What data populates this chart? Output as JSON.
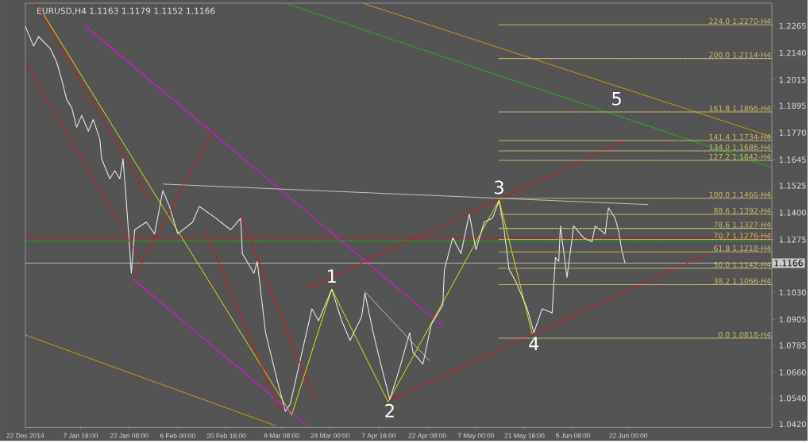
{
  "chart_data": {
    "type": "line",
    "title": "EURUSD,H4 1.1163 1.1179 1.1152 1.1166",
    "xlim": [
      "2014-12-22T00:00",
      "2015-08-04T08:00"
    ],
    "xticks": [
      {
        "value": "2014-12-22T00:00",
        "label": "22 Dec 2014"
      },
      {
        "value": "2015-01-07T16:00",
        "label": "7 Jan 16:00"
      },
      {
        "value": "2015-01-22T08:00",
        "label": "22 Jan 08:00"
      },
      {
        "value": "2015-02-06T00:00",
        "label": "6 Feb 00:00"
      },
      {
        "value": "2015-02-20T16:00",
        "label": "20 Feb 16:00"
      },
      {
        "value": "2015-03-09T08:00",
        "label": "9 Mar 08:00"
      },
      {
        "value": "2015-03-24T00:00",
        "label": "24 Mar 00:00"
      },
      {
        "value": "2015-04-07T16:00",
        "label": "7 Apr 16:00"
      },
      {
        "value": "2015-04-22T08:00",
        "label": "22 Apr 08:00"
      },
      {
        "value": "2015-05-07T00:00",
        "label": "7 May 00:00"
      },
      {
        "value": "2015-05-21T16:00",
        "label": "21 May 16:00"
      },
      {
        "value": "2015-06-05T08:00",
        "label": "5 Jun 08:00"
      },
      {
        "value": "2015-06-22T00:00",
        "label": "22 Jun 00:00"
      }
    ],
    "ylim": [
      1.0405,
      1.237
    ],
    "yticks": [
      1.2265,
      {
        "value": 1.214,
        "label": "1.2140"
      },
      1.2015,
      1.1895,
      {
        "value": 1.177,
        "label": "1.1770"
      },
      1.1645,
      1.1525,
      {
        "value": 1.14,
        "label": "1.1400"
      },
      1.1275,
      {
        "value": 1.103,
        "label": "1.1030"
      },
      1.0905,
      1.0785,
      {
        "value": 1.066,
        "label": "1.0660"
      },
      {
        "value": 1.054,
        "label": "1.0540"
      },
      {
        "value": 1.042,
        "label": "1.0420"
      }
    ],
    "series": [
      {
        "color": "#e8e8e8",
        "line_style": "solid",
        "x": [
          "2014-12-22",
          "2014-12-24T12:00",
          "2014-12-26",
          "2014-12-29T12:00",
          "2014-12-31T12:00",
          "2015-01-02",
          "2015-01-03T12:00",
          "2015-01-05",
          "2015-01-06T12:00",
          "2015-01-08",
          "2015-01-10",
          "2015-01-11T12:00",
          "2015-01-13T12:00",
          "2015-01-14",
          "2015-01-16T12:00",
          "2015-01-18",
          "2015-01-19T12:00",
          "2015-01-20T12:00",
          "2015-01-21T12:00",
          "2015-01-23",
          "2015-01-24",
          "2015-01-27T12:00",
          "2015-01-30",
          "2015-02-01T12:00",
          "2015-02-03T12:00",
          "2015-02-06",
          "2015-02-10T12:00",
          "2015-02-12T12:00",
          "2015-02-17T12:00",
          "2015-02-22",
          "2015-02-25",
          "2015-02-25T12:00",
          "2015-03-01",
          "2015-03-02",
          "2015-03-04T12:00",
          "2015-03-08",
          "2015-03-10T12:00",
          "2015-03-12",
          "2015-03-15T12:00",
          "2015-03-18T12:00",
          "2015-03-20T12:00",
          "2015-03-24T12:00",
          "2015-03-27T12:00",
          "2015-03-30",
          "2015-04-02T12:00",
          "2015-04-03T12:00",
          "2015-04-06",
          "2015-04-08",
          "2015-04-11",
          "2015-04-14",
          "2015-04-17",
          "2015-04-18",
          "2015-04-21",
          "2015-04-23T12:00",
          "2015-04-27",
          "2015-04-27T12:00",
          "2015-04-30",
          "2015-05-02T12:00",
          "2015-05-05",
          "2015-05-07",
          "2015-05-09T12:00",
          "2015-05-12",
          "2015-05-14",
          "2015-05-15T12:00",
          "2015-05-17",
          "2015-05-19",
          "2015-05-22T12:00",
          "2015-05-24T12:00",
          "2015-05-27",
          "2015-05-30",
          "2015-05-31",
          "2015-06-01",
          "2015-06-01T12:00",
          "2015-06-03T12:00",
          "2015-06-05T12:00",
          "2015-06-08T12:00",
          "2015-06-11",
          "2015-06-12",
          "2015-06-15",
          "2015-06-16",
          "2015-06-18",
          "2015-06-19",
          "2015-06-20",
          "2015-06-21"
        ],
        "values": [
          1.2263,
          1.2171,
          1.2215,
          1.216,
          1.2095,
          1.2014,
          1.1923,
          1.1886,
          1.1795,
          1.185,
          1.1777,
          1.1831,
          1.174,
          1.1649,
          1.1557,
          1.1594,
          1.1557,
          1.1649,
          1.1448,
          1.1119,
          1.132,
          1.1356,
          1.1301,
          1.1502,
          1.1429,
          1.1301,
          1.1356,
          1.1429,
          1.1374,
          1.132,
          1.1374,
          1.121,
          1.1119,
          1.1173,
          1.0844,
          1.0625,
          1.0479,
          1.0515,
          1.0753,
          1.0954,
          1.0899,
          1.1045,
          1.0899,
          1.0808,
          1.0917,
          1.1027,
          1.0844,
          1.0716,
          1.0534,
          1.068,
          1.0844,
          1.0753,
          1.0698,
          1.0881,
          1.0972,
          1.1137,
          1.1283,
          1.121,
          1.1393,
          1.1228,
          1.1356,
          1.1374,
          1.1455,
          1.132,
          1.1137,
          1.1082,
          1.0954,
          1.0844,
          1.0954,
          1.0936,
          1.1192,
          1.1173,
          1.1338,
          1.11,
          1.1338,
          1.1283,
          1.1265,
          1.1338,
          1.1301,
          1.1422,
          1.1374,
          1.132,
          1.1228,
          1.1166
        ]
      },
      {
        "color": "#ffff00",
        "line_style": "solid",
        "x": [
          "2014-12-27T12:00",
          "2015-03-12T12:00"
        ],
        "values": [
          1.2318,
          1.046
        ]
      },
      {
        "color": "#ff00ff",
        "line_style": "dashed",
        "x": [
          "2015-01-09",
          "2015-04-27"
        ],
        "values": [
          1.2266,
          1.0874
        ]
      },
      {
        "color": "#ff00ff",
        "line_style": "dashed",
        "x": [
          "2015-01-23T12:00",
          "2015-03-17"
        ],
        "values": [
          1.1093,
          1.0413
        ]
      },
      {
        "color": "#ff0000",
        "line_style": "solid",
        "x": [
          "2015-03-16T12:00",
          "2015-06-21"
        ],
        "values": [
          1.1045,
          1.1733
        ]
      },
      {
        "color": "#ff0000",
        "line_style": "solid",
        "x": [
          "2015-04-10T12:00",
          "2015-07-16"
        ],
        "values": [
          1.0526,
          1.121
        ]
      },
      {
        "color": "#d8d8d8",
        "line_style": "solid",
        "x": [
          "2015-02-01T12:00",
          "2015-06-28"
        ],
        "values": [
          1.1532,
          1.1437
        ]
      },
      {
        "color": "#00d000",
        "line_style": "solid",
        "x": [
          "2015-03-10T12:00",
          "2015-08-04T08:00"
        ],
        "values": [
          1.2369,
          1.1608
        ]
      },
      {
        "color": "#f0a000",
        "line_style": "solid",
        "x": [
          "2015-04-03",
          "2015-08-04T08:00"
        ],
        "values": [
          1.2369,
          1.1751
        ]
      },
      {
        "color": "#f0a000",
        "line_style": "solid",
        "x": [
          "2014-12-22",
          "2015-03-07T12:00"
        ],
        "values": [
          1.0833,
          1.0413
        ]
      },
      {
        "color": "#ff0000",
        "line_style": "solid",
        "x": [
          "2014-12-22",
          "2015-01-26"
        ],
        "values": [
          1.2098,
          1.1173
        ]
      },
      {
        "color": "#ff0000",
        "line_style": "solid",
        "x": [
          "2014-12-25",
          "2015-01-28"
        ],
        "values": [
          1.2369,
          1.1473
        ]
      },
      {
        "color": "#ff0000",
        "line_style": "solid",
        "x": [
          "2015-02-25",
          "2015-03-19T12:00"
        ],
        "values": [
          1.1382,
          1.0534
        ]
      },
      {
        "color": "#ff0000",
        "line_style": "solid",
        "x": [
          "2015-02-14T12:00",
          "2015-03-09"
        ],
        "values": [
          1.1312,
          1.0479
        ]
      },
      {
        "color": "#ff0000",
        "line_style": "solid",
        "x": [
          "2015-01-23T12:00",
          "2015-02-17"
        ],
        "values": [
          1.1093,
          1.1784
        ]
      },
      {
        "color": "#d8d8d8",
        "line_style": "solid",
        "x": [
          "2015-04-03T12:00",
          "2015-04-23"
        ],
        "values": [
          1.1034,
          1.0713
        ]
      },
      {
        "color": "#ffff00",
        "line_style": "solid",
        "x": [
          "2015-03-12T12:00",
          "2015-03-24T12:00",
          "2015-04-10T12:00",
          "2015-05-14",
          "2015-05-24"
        ],
        "values": [
          1.0468,
          1.1045,
          1.0523,
          1.1459,
          1.0837
        ]
      },
      {
        "color": "#c8b96a",
        "line_style": "dashed",
        "x": [
          "2015-05-14",
          "2015-08-04T08:00"
        ],
        "values": [
          1.227,
          1.227
        ]
      },
      {
        "color": "#c8b96a",
        "line_style": "dashed",
        "x": [
          "2015-05-14",
          "2015-08-04T08:00"
        ],
        "values": [
          1.2114,
          1.2114
        ]
      },
      {
        "color": "#c8b96a",
        "line_style": "dashed",
        "x": [
          "2015-05-14",
          "2015-08-04T08:00"
        ],
        "values": [
          1.1866,
          1.1866
        ]
      },
      {
        "color": "#c8b96a",
        "line_style": "dashed",
        "x": [
          "2015-05-14",
          "2015-08-04T08:00"
        ],
        "values": [
          1.1734,
          1.1734
        ]
      },
      {
        "color": "#c8b96a",
        "line_style": "dashed",
        "x": [
          "2015-05-14",
          "2015-08-04T08:00"
        ],
        "values": [
          1.1686,
          1.1686
        ]
      },
      {
        "color": "#c8b96a",
        "line_style": "dashed",
        "x": [
          "2015-05-14",
          "2015-08-04T08:00"
        ],
        "values": [
          1.1642,
          1.1642
        ]
      },
      {
        "color": "#c8b96a",
        "line_style": "dashed",
        "x": [
          "2015-05-14",
          "2015-08-04T08:00"
        ],
        "values": [
          1.1466,
          1.1466
        ]
      },
      {
        "color": "#c8b96a",
        "line_style": "dashed",
        "x": [
          "2015-05-14",
          "2015-08-04T08:00"
        ],
        "values": [
          1.1392,
          1.1392
        ]
      },
      {
        "color": "#c8b96a",
        "line_style": "dashed",
        "x": [
          "2015-05-14",
          "2015-08-04T08:00"
        ],
        "values": [
          1.1327,
          1.1327
        ]
      },
      {
        "color": "#c8b96a",
        "line_style": "dashed",
        "x": [
          "2015-05-14",
          "2015-08-04T08:00"
        ],
        "values": [
          1.1276,
          1.1276
        ]
      },
      {
        "color": "#c8b96a",
        "line_style": "dashed",
        "x": [
          "2015-05-14",
          "2015-08-04T08:00"
        ],
        "values": [
          1.1218,
          1.1218
        ]
      },
      {
        "color": "#c8b96a",
        "line_style": "dashed",
        "x": [
          "2015-05-14",
          "2015-08-04T08:00"
        ],
        "values": [
          1.1142,
          1.1142
        ]
      },
      {
        "color": "#c8b96a",
        "line_style": "dashed",
        "x": [
          "2015-05-14",
          "2015-08-04T08:00"
        ],
        "values": [
          1.1066,
          1.1066
        ]
      },
      {
        "color": "#c8b96a",
        "line_style": "dashed",
        "x": [
          "2015-05-14",
          "2015-08-04T08:00"
        ],
        "values": [
          1.0818,
          1.0818
        ]
      }
    ],
    "ref_lines": [
      {
        "axis": "y",
        "value": 1.1166,
        "label": "1.1166",
        "color": "#c8c8c8",
        "line_style": "solid"
      },
      {
        "axis": "y",
        "value": 1.1283,
        "color": "#ff0000",
        "line_style": "dashed"
      },
      {
        "axis": "y",
        "value": 1.1268,
        "color": "#00c800",
        "line_style": "dashed"
      }
    ],
    "annotations": [
      {
        "text": "224.0 1.2270-H4",
        "x": "2015-08-04T08:00",
        "y": 1.227
      },
      {
        "text": "200.0 1.2114-H4",
        "x": "2015-08-04T08:00",
        "y": 1.2114
      },
      {
        "text": "161.8 1.1866-H4",
        "x": "2015-08-04T08:00",
        "y": 1.1866
      },
      {
        "text": "141.4 1.1734-H4",
        "x": "2015-08-04T08:00",
        "y": 1.1734
      },
      {
        "text": "134.0 1.1686-H4",
        "x": "2015-08-04T08:00",
        "y": 1.1686
      },
      {
        "text": "127.2 1.1642-H4",
        "x": "2015-08-04T08:00",
        "y": 1.1642
      },
      {
        "text": "100.0 1.1466-H4",
        "x": "2015-08-04T08:00",
        "y": 1.1466
      },
      {
        "text": "88.6 1.1392-H4",
        "x": "2015-08-04T08:00",
        "y": 1.1392
      },
      {
        "text": "78.6 1.1327-H4",
        "x": "2015-08-04T08:00",
        "y": 1.1327
      },
      {
        "text": "70.7 1.1276-H4",
        "x": "2015-08-04T08:00",
        "y": 1.1276
      },
      {
        "text": "61.8 1.1218-H4",
        "x": "2015-08-04T08:00",
        "y": 1.1218
      },
      {
        "text": "50.0 1.1142-H4",
        "x": "2015-08-04T08:00",
        "y": 1.1142
      },
      {
        "text": "38.2 1.1066-H4",
        "x": "2015-08-04T08:00",
        "y": 1.1066
      },
      {
        "text": "0.0 1.0818-H4",
        "x": "2015-08-04T08:00",
        "y": 1.0818
      },
      {
        "text": "1",
        "x": "2015-03-24T12:00",
        "y": 1.1045
      },
      {
        "text": "2",
        "x": "2015-04-11",
        "y": 1.0534
      },
      {
        "text": "3",
        "x": "2015-05-14",
        "y": 1.1455
      },
      {
        "text": "4",
        "x": "2015-05-24T12:00",
        "y": 1.0844
      },
      {
        "text": "5",
        "x": "2015-06-18T12:00",
        "y": 1.1866
      }
    ]
  }
}
